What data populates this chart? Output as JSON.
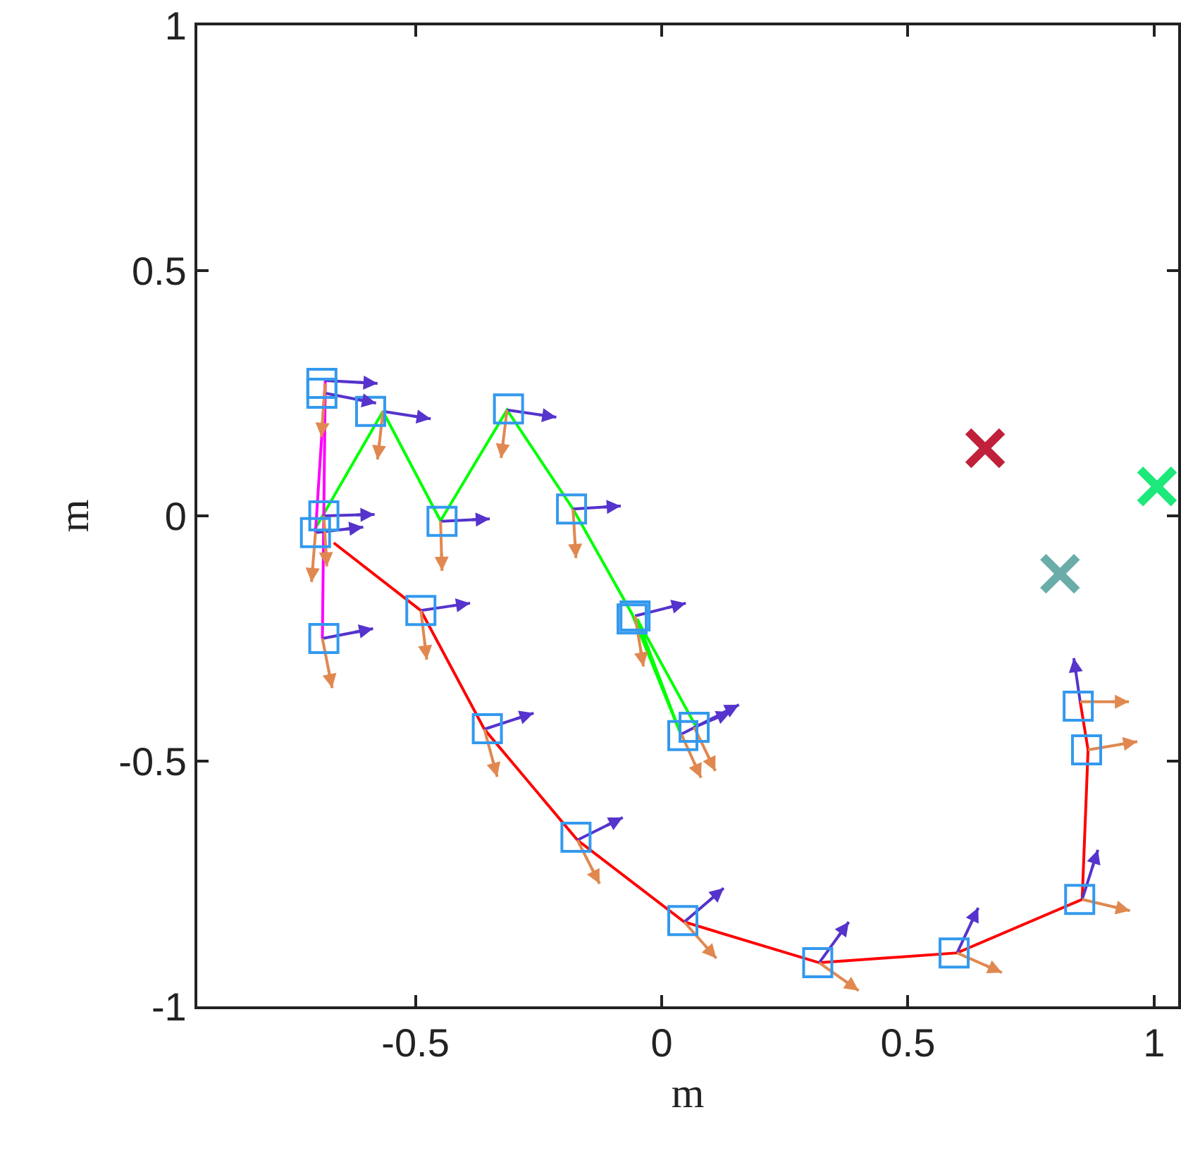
{
  "chart_data": {
    "type": "line",
    "xlabel": "m",
    "ylabel": "m",
    "xlim": [
      -0.943,
      1.049
    ],
    "ylim": [
      -1,
      1
    ],
    "xticks": [
      -0.5,
      0,
      0.5,
      1
    ],
    "yticks": [
      -1,
      -0.5,
      0,
      0.5,
      1
    ],
    "grid": false,
    "series": [
      {
        "color": "#ff0000",
        "marker": "none",
        "x": [
          -0.666,
          -0.489,
          -0.36,
          -0.171,
          0.046,
          0.32,
          0.6,
          0.854,
          0.866,
          0.85
        ],
        "values": [
          -0.055,
          -0.193,
          -0.435,
          -0.661,
          -0.828,
          -0.911,
          -0.891,
          -0.782,
          -0.477,
          -0.379
        ]
      },
      {
        "color": "#00ff00",
        "marker": "none",
        "x": [
          -0.706,
          -0.566,
          -0.449,
          -0.314,
          -0.18,
          -0.06,
          0.04,
          -0.05,
          0.07
        ],
        "values": [
          -0.03,
          0.213,
          -0.01,
          0.216,
          0.014,
          -0.2,
          -0.448,
          -0.21,
          -0.43
        ]
      },
      {
        "color": "#ff00ff",
        "marker": "none",
        "x": [
          -0.703,
          -0.683,
          -0.689
        ],
        "values": [
          -0.034,
          0.276,
          -0.25
        ]
      },
      {
        "color": "#5533cc",
        "marker": "none",
        "x": [
          -0.683,
          -0.577,
          null,
          -0.683,
          -0.58,
          null,
          -0.566,
          -0.469,
          null,
          -0.449,
          -0.349,
          null,
          -0.314,
          -0.214,
          null,
          -0.18,
          -0.083,
          null,
          -0.054,
          0.049,
          null,
          0.04,
          0.157,
          null,
          0.066,
          0.14,
          null,
          -0.686,
          -0.583,
          null,
          -0.703,
          -0.606,
          null,
          -0.689,
          -0.586,
          null,
          -0.489,
          -0.389,
          null,
          -0.36,
          -0.26,
          null,
          -0.171,
          -0.079,
          null,
          0.046,
          0.126,
          null,
          0.32,
          0.38,
          null,
          0.6,
          0.643,
          null,
          0.854,
          0.886,
          null,
          0.85,
          0.837
        ],
        "values": [
          0.276,
          0.27,
          null,
          0.25,
          0.23,
          null,
          0.213,
          0.198,
          null,
          -0.011,
          -0.006,
          null,
          0.216,
          0.201,
          null,
          0.014,
          0.02,
          null,
          -0.204,
          -0.178,
          null,
          -0.445,
          -0.385,
          null,
          -0.431,
          -0.4,
          null,
          0,
          0.003,
          null,
          -0.034,
          -0.023,
          null,
          -0.25,
          -0.23,
          null,
          -0.193,
          -0.178,
          null,
          -0.435,
          -0.402,
          null,
          -0.661,
          -0.615,
          null,
          -0.828,
          -0.759,
          null,
          -0.911,
          -0.828,
          null,
          -0.891,
          -0.799,
          null,
          -0.782,
          -0.681,
          null,
          -0.379,
          -0.29
        ]
      },
      {
        "color": "#e08850",
        "marker": "none",
        "x": [
          -0.683,
          -0.691,
          null,
          -0.566,
          -0.577,
          null,
          -0.449,
          -0.446,
          null,
          -0.314,
          -0.326,
          null,
          -0.18,
          -0.174,
          null,
          -0.054,
          -0.037,
          null,
          0.04,
          0.08,
          null,
          0.066,
          0.109,
          null,
          -0.703,
          -0.711,
          null,
          -0.686,
          -0.68,
          null,
          -0.689,
          -0.669,
          null,
          -0.489,
          -0.477,
          null,
          -0.36,
          -0.334,
          null,
          -0.171,
          -0.126,
          null,
          0.046,
          0.111,
          null,
          0.32,
          0.4,
          null,
          0.6,
          0.691,
          null,
          0.854,
          0.951,
          null,
          0.866,
          0.966,
          null,
          0.85,
          0.949
        ],
        "values": [
          0.27,
          0.161,
          null,
          0.213,
          0.115,
          null,
          -0.011,
          -0.112,
          null,
          0.216,
          0.118,
          null,
          0.014,
          -0.086,
          null,
          -0.204,
          -0.307,
          null,
          -0.445,
          -0.534,
          null,
          -0.431,
          -0.52,
          null,
          -0.034,
          -0.135,
          null,
          0,
          -0.103,
          null,
          -0.25,
          -0.351,
          null,
          -0.193,
          -0.293,
          null,
          -0.435,
          -0.532,
          null,
          -0.661,
          -0.75,
          null,
          -0.828,
          -0.902,
          null,
          -0.911,
          -0.968,
          null,
          -0.891,
          -0.931,
          null,
          -0.782,
          -0.805,
          null,
          -0.477,
          -0.46,
          null,
          -0.379,
          -0.379
        ]
      },
      {
        "type": "scatter",
        "color": "#3399ee",
        "marker": "square",
        "x": [
          -0.69,
          -0.69,
          -0.591,
          -0.446,
          -0.311,
          -0.183,
          -0.054,
          -0.06,
          0.043,
          0.066,
          -0.686,
          -0.703,
          -0.686,
          -0.489,
          -0.354,
          -0.174,
          0.043,
          0.317,
          0.594,
          0.849,
          0.863,
          0.846
        ],
        "values": [
          0.27,
          0.25,
          0.213,
          -0.011,
          0.218,
          0.014,
          -0.204,
          -0.21,
          -0.448,
          -0.431,
          0,
          -0.034,
          -0.25,
          -0.193,
          -0.434,
          -0.655,
          -0.825,
          -0.911,
          -0.891,
          -0.782,
          -0.477,
          -0.388
        ]
      },
      {
        "type": "scatter",
        "color": "#c0203a",
        "marker": "cross",
        "x": [
          0.657
        ],
        "values": [
          0.138
        ]
      },
      {
        "type": "scatter",
        "color": "#6aada8",
        "marker": "cross",
        "x": [
          0.809
        ],
        "values": [
          -0.118
        ]
      },
      {
        "type": "scatter",
        "color": "#1de87a",
        "marker": "cross",
        "x": [
          1.006
        ],
        "values": [
          0.06
        ]
      }
    ]
  }
}
